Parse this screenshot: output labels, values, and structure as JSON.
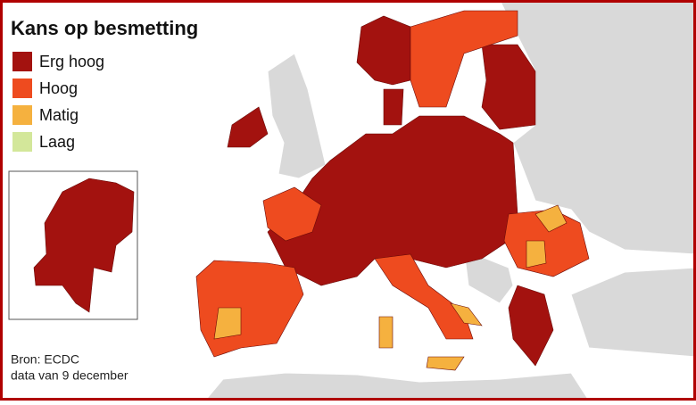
{
  "title": "Kans op besmetting",
  "legend": [
    {
      "label": "Erg hoog",
      "color": "#a3120f"
    },
    {
      "label": "Hoog",
      "color": "#ee4b1f"
    },
    {
      "label": "Matig",
      "color": "#f5b13f"
    },
    {
      "label": "Laag",
      "color": "#d3e79a"
    }
  ],
  "source": "Bron: ECDC",
  "date_note": "data van 9 december"
}
